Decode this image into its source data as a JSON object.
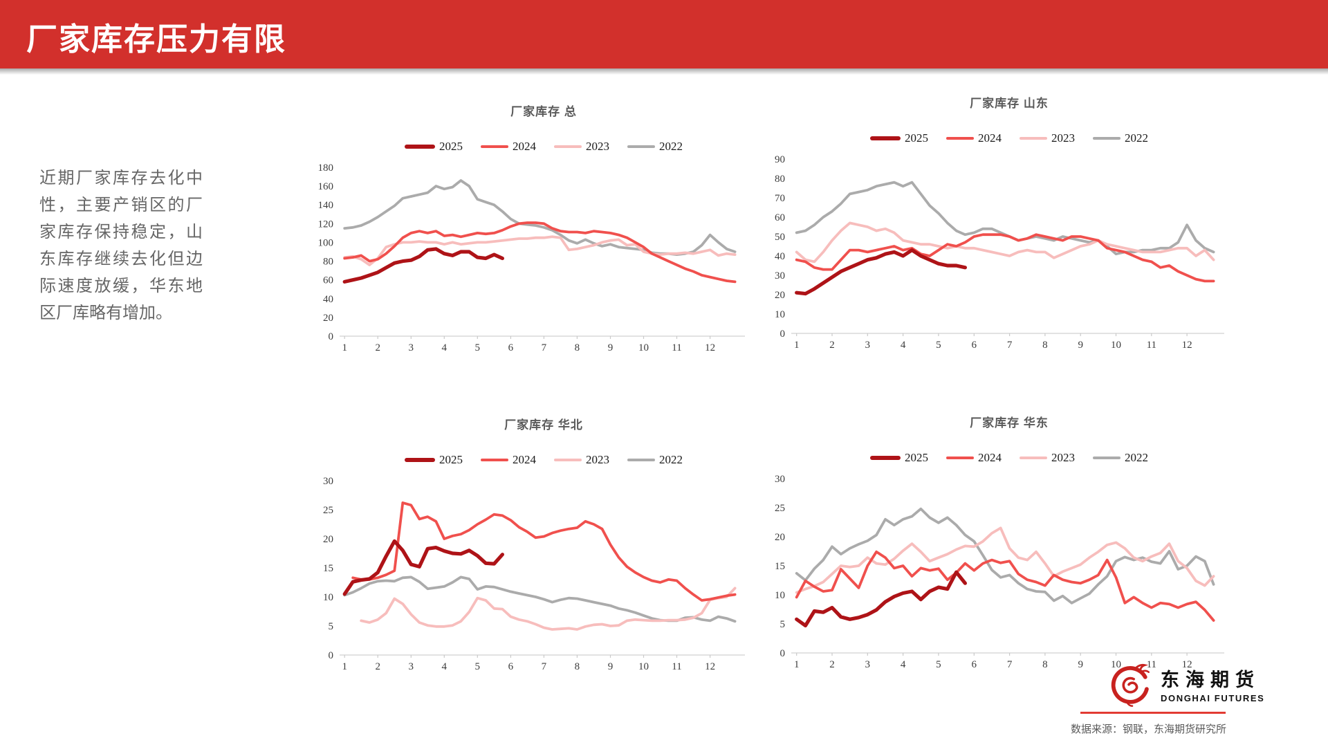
{
  "slide": {
    "title": "厂家库存压力有限",
    "commentary": "近期厂家库存去化中性，主要产销区的厂家库存保持稳定，山东库存继续去化但边际速度放缓，华东地区厂库略有增加。",
    "source_note": "数据来源：钢联，东海期货研究所",
    "logo_cn": "东海期货",
    "logo_en": "DONGHAI FUTURES",
    "accent_red": "#D2302C",
    "logo_red": "#C8221F"
  },
  "chart_data": [
    {
      "type": "line",
      "title": "厂家库存 总",
      "ylim": [
        0,
        180
      ],
      "ytick": 20,
      "xlim": [
        0.85,
        13.05
      ],
      "xticks": [
        1,
        2,
        3,
        4,
        5,
        6,
        7,
        8,
        9,
        10,
        11,
        12
      ],
      "grid": false,
      "legend_position": "top",
      "series": [
        {
          "name": "2025",
          "color": "#AE1317",
          "width": 5.2,
          "x_start": 1,
          "x_step": 0.25,
          "values": [
            58,
            60,
            62,
            65,
            68,
            73,
            78,
            80,
            81,
            85,
            92,
            93,
            88,
            86,
            90,
            90,
            84,
            83,
            87,
            83
          ]
        },
        {
          "name": "2024",
          "color": "#F0504D",
          "width": 3.8,
          "x_start": 1,
          "x_step": 0.25,
          "values": [
            83,
            84,
            86,
            80,
            82,
            88,
            96,
            105,
            110,
            112,
            110,
            112,
            107,
            108,
            106,
            108,
            110,
            109,
            110,
            113,
            117,
            120,
            121,
            121,
            120,
            115,
            112,
            111,
            111,
            110,
            112,
            111,
            110,
            108,
            105,
            100,
            95,
            88,
            84,
            80,
            76,
            72,
            69,
            65,
            63,
            61,
            59,
            58
          ]
        },
        {
          "name": "2023",
          "color": "#F7BDBC",
          "width": 3.8,
          "x_start": 1,
          "x_step": 0.25,
          "values": [
            84,
            85,
            82,
            76,
            83,
            95,
            98,
            100,
            100,
            101,
            100,
            100,
            98,
            100,
            98,
            99,
            100,
            100,
            101,
            102,
            103,
            104,
            104,
            105,
            105,
            106,
            105,
            92,
            93,
            95,
            97,
            100,
            102,
            103,
            97,
            98,
            90,
            88,
            87,
            88,
            88,
            89,
            88,
            90,
            92,
            86,
            88,
            87
          ]
        },
        {
          "name": "2022",
          "color": "#ABABAB",
          "width": 3.8,
          "x_start": 1,
          "x_step": 0.25,
          "values": [
            115,
            116,
            118,
            122,
            127,
            133,
            139,
            147,
            149,
            151,
            153,
            160,
            157,
            159,
            166,
            160,
            146,
            143,
            140,
            133,
            125,
            120,
            119,
            118,
            116,
            113,
            108,
            102,
            99,
            103,
            99,
            96,
            98,
            95,
            94,
            93,
            92,
            89,
            88,
            88,
            87,
            88,
            90,
            97,
            108,
            100,
            93,
            90
          ]
        }
      ]
    },
    {
      "type": "line",
      "title": "厂家库存 山东",
      "ylim": [
        0,
        90
      ],
      "ytick": 10,
      "xlim": [
        0.85,
        13.05
      ],
      "xticks": [
        1,
        2,
        3,
        4,
        5,
        6,
        7,
        8,
        9,
        10,
        11,
        12
      ],
      "grid": false,
      "legend_position": "top",
      "series": [
        {
          "name": "2025",
          "color": "#AE1317",
          "width": 5.2,
          "x_start": 1,
          "x_step": 0.25,
          "values": [
            21,
            20.5,
            23,
            26,
            29,
            32,
            34,
            36,
            38,
            39,
            41,
            42,
            40,
            43,
            40,
            38,
            36,
            35,
            35,
            34
          ]
        },
        {
          "name": "2024",
          "color": "#F0504D",
          "width": 3.8,
          "x_start": 1,
          "x_step": 0.25,
          "values": [
            38,
            37,
            34,
            33,
            33,
            38,
            43,
            43,
            42,
            43,
            44,
            45,
            43,
            44,
            41,
            40,
            43,
            46,
            45,
            47,
            50,
            51,
            51,
            51,
            50,
            48,
            49,
            51,
            50,
            49,
            48,
            50,
            50,
            49,
            48,
            44,
            43,
            42,
            40,
            38,
            37,
            34,
            35,
            32,
            30,
            28,
            27,
            27
          ]
        },
        {
          "name": "2023",
          "color": "#F7BDBC",
          "width": 3.8,
          "x_start": 1,
          "x_step": 0.25,
          "values": [
            42,
            38,
            37,
            42,
            48,
            53,
            57,
            56,
            55,
            53,
            54,
            52,
            48,
            47,
            46,
            46,
            45,
            44,
            45,
            44,
            44,
            43,
            42,
            41,
            40,
            42,
            43,
            42,
            42,
            39,
            41,
            43,
            45,
            46,
            48,
            46,
            45,
            44,
            43,
            42,
            42,
            42,
            43,
            44,
            44,
            40,
            43,
            38
          ]
        },
        {
          "name": "2022",
          "color": "#ABABAB",
          "width": 3.8,
          "x_start": 1,
          "x_step": 0.25,
          "values": [
            52,
            53,
            56,
            60,
            63,
            67,
            72,
            73,
            74,
            76,
            77,
            78,
            76,
            78,
            72,
            66,
            62,
            57,
            53,
            51,
            52,
            54,
            54,
            52,
            50,
            48,
            49,
            50,
            49,
            48,
            50,
            49,
            48,
            47,
            48,
            45,
            41,
            42,
            42,
            43,
            43,
            44,
            44,
            47,
            56,
            48,
            44,
            42
          ]
        }
      ]
    },
    {
      "type": "line",
      "title": "厂家库存 华北",
      "ylim": [
        0,
        30
      ],
      "ytick": 5,
      "xlim": [
        0.85,
        13.05
      ],
      "xticks": [
        1,
        2,
        3,
        4,
        5,
        6,
        7,
        8,
        9,
        10,
        11,
        12
      ],
      "grid": false,
      "legend_position": "top",
      "series": [
        {
          "name": "2025",
          "color": "#AE1317",
          "width": 5.2,
          "x_start": 1,
          "x_step": 0.25,
          "values": [
            10.5,
            12.6,
            12.9,
            13.1,
            14.2,
            17,
            19.6,
            18,
            15.6,
            15.2,
            18.3,
            18.5,
            17.9,
            17.5,
            17.4,
            18,
            17.1,
            15.8,
            15.7,
            17.3
          ]
        },
        {
          "name": "2024",
          "color": "#F0504D",
          "width": 3.8,
          "x_start": 1.25,
          "x_step": 0.25,
          "values": [
            13.3,
            13,
            13,
            13.3,
            13.8,
            14.5,
            26.2,
            25.8,
            23.4,
            23.8,
            23,
            20,
            20.5,
            20.8,
            21.5,
            22.5,
            23.3,
            24.2,
            24,
            23.2,
            22,
            21.2,
            20.2,
            20.4,
            21,
            21.4,
            21.7,
            21.9,
            23,
            22.5,
            21.7,
            19,
            16.8,
            15.2,
            14.2,
            13.4,
            12.8,
            12.5,
            13,
            12.8,
            11.5,
            10.4,
            9.4,
            9.6,
            9.9,
            10.2,
            10.4
          ]
        },
        {
          "name": "2023",
          "color": "#F7BDBC",
          "width": 3.8,
          "x_start": 1.5,
          "x_step": 0.25,
          "values": [
            5.9,
            5.6,
            6.1,
            7.2,
            9.7,
            8.8,
            7,
            5.6,
            5.1,
            4.9,
            4.9,
            5.1,
            5.8,
            7.4,
            9.8,
            9.4,
            8,
            7.9,
            6.6,
            6.1,
            5.8,
            5.3,
            4.7,
            4.4,
            4.5,
            4.6,
            4.4,
            4.9,
            5.2,
            5.3,
            5,
            5.1,
            5.9,
            6.1,
            6,
            5.9,
            5.9,
            6,
            6,
            6.1,
            6.4,
            7.2,
            9.5,
            9.8,
            10,
            11.5
          ]
        },
        {
          "name": "2022",
          "color": "#ABABAB",
          "width": 3.8,
          "x_start": 1,
          "x_step": 0.25,
          "values": [
            10.3,
            10.8,
            11.5,
            12.3,
            12.7,
            12.8,
            12.7,
            13.3,
            13.4,
            12.6,
            11.4,
            11.6,
            11.8,
            12.5,
            13.4,
            13.1,
            11.3,
            11.8,
            11.7,
            11.3,
            10.9,
            10.6,
            10.3,
            10,
            9.6,
            9.1,
            9.5,
            9.8,
            9.7,
            9.4,
            9.1,
            8.8,
            8.5,
            8,
            7.7,
            7.3,
            6.8,
            6.3,
            6,
            5.9,
            5.9,
            6.4,
            6.5,
            6.1,
            5.9,
            6.6,
            6.3,
            5.8
          ]
        }
      ]
    },
    {
      "type": "line",
      "title": "厂家库存 华东",
      "ylim": [
        0,
        30
      ],
      "ytick": 5,
      "xlim": [
        0.85,
        13.05
      ],
      "xticks": [
        1,
        2,
        3,
        4,
        5,
        6,
        7,
        8,
        9,
        10,
        11,
        12
      ],
      "grid": false,
      "legend_position": "top",
      "series": [
        {
          "name": "2025",
          "color": "#AE1317",
          "width": 5.2,
          "x_start": 1,
          "x_step": 0.25,
          "values": [
            5.8,
            4.7,
            7.2,
            7,
            7.8,
            6.2,
            5.8,
            6.1,
            6.6,
            7.4,
            8.8,
            9.7,
            10.3,
            10.6,
            9.2,
            10.6,
            11.3,
            11,
            13.9,
            12
          ]
        },
        {
          "name": "2024",
          "color": "#F0504D",
          "width": 3.8,
          "x_start": 1,
          "x_step": 0.25,
          "values": [
            9.6,
            12.4,
            11.4,
            10.6,
            10.8,
            14.4,
            12.8,
            11.2,
            15,
            17.4,
            16.4,
            14.6,
            15,
            13.2,
            14.6,
            14.2,
            14.5,
            12.6,
            13.8,
            15.4,
            14.2,
            15.4,
            16,
            15.5,
            15.8,
            13.6,
            12.6,
            12.2,
            11.6,
            13.4,
            12.6,
            12.2,
            12,
            12.6,
            13.4,
            16,
            13,
            8.6,
            9.6,
            8.6,
            7.8,
            8.6,
            8.4,
            7.8,
            8.4,
            8.8,
            7.4,
            5.6
          ]
        },
        {
          "name": "2023",
          "color": "#F7BDBC",
          "width": 3.8,
          "x_start": 1,
          "x_step": 0.25,
          "values": [
            10.4,
            11,
            11.5,
            12.2,
            13.6,
            15,
            14.8,
            15,
            16.4,
            15.4,
            15.2,
            16.2,
            17.6,
            18.8,
            17.4,
            15.8,
            16.4,
            17,
            17.8,
            18.4,
            18.3,
            19.2,
            20.6,
            21.5,
            18,
            16.4,
            16,
            17.4,
            15.4,
            13.2,
            14,
            14.6,
            15.2,
            16.4,
            17.4,
            18.6,
            19,
            18,
            16.4,
            15.8,
            16.6,
            17.2,
            18.8,
            15.8,
            14.6,
            12.4,
            11.6,
            13.2
          ]
        },
        {
          "name": "2022",
          "color": "#ABABAB",
          "width": 3.8,
          "x_start": 1,
          "x_step": 0.25,
          "values": [
            13.7,
            12.5,
            14.5,
            16,
            18.3,
            17,
            18,
            18.7,
            19.3,
            20.3,
            23,
            22,
            23,
            23.5,
            24.8,
            23.3,
            22.4,
            23.3,
            22,
            20.3,
            19.2,
            16.8,
            14.3,
            13,
            13.4,
            12,
            11,
            10.6,
            10.5,
            9,
            9.8,
            8.6,
            9.4,
            10.2,
            11.8,
            13.2,
            15.8,
            16.5,
            16,
            16.4,
            15.7,
            15.4,
            17.5,
            14.4,
            15,
            16.6,
            15.8,
            11.8
          ]
        }
      ]
    }
  ]
}
